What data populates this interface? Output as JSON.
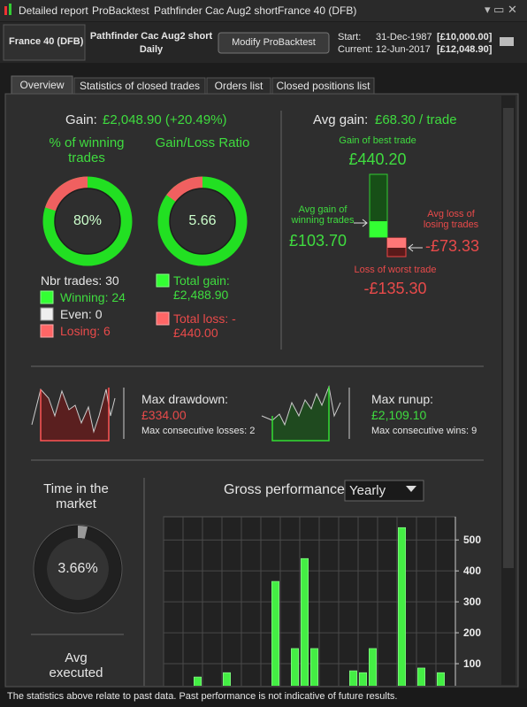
{
  "titlebar": [
    "Detailed report",
    "ProBacktest",
    "Pathfinder Cac Aug2 short",
    "France 40 (DFB)"
  ],
  "header": {
    "instrument": "France 40 (DFB)",
    "system": "Pathfinder Cac Aug2 short",
    "period": "Daily",
    "button": "Modify ProBacktest",
    "start_label": "Start:",
    "start_date": "31-Dec-1987",
    "start_capital": "[£10,000.00]",
    "current_label": "Current:",
    "current_date": "12-Jun-2017",
    "current_capital": "[£12,048.90]"
  },
  "tabs": [
    "Overview",
    "Statistics of closed trades",
    "Orders list",
    "Closed positions list"
  ],
  "summary": {
    "gain_label": "Gain:",
    "gain": "£2,048.90 (+20.49%)",
    "winning_title": "% of winning trades",
    "winning_pct": "80%",
    "ratio_title": "Gain/Loss Ratio",
    "ratio": "5.66",
    "nbr_trades": "Nbr trades: 30",
    "winning": "Winning: 24",
    "even": "Even: 0",
    "losing": "Losing: 6",
    "total_gain": "Total gain: £2,488.90",
    "total_loss": "Total loss: -£440.00"
  },
  "avg": {
    "avg_gain_label": "Avg gain:",
    "avg_gain": "£68.30 / trade",
    "best_label": "Gain of best trade",
    "best": "£440.20",
    "avg_win_label": "Avg gain of winning trades",
    "avg_win": "£103.70",
    "avg_loss_label": "Avg loss of losing trades",
    "avg_loss": "-£73.33",
    "worst_label": "Loss of worst trade",
    "worst": "-£135.30"
  },
  "drawdown": {
    "label": "Max drawdown:",
    "value": "£334.00",
    "consecutive": "Max consecutive losses: 2"
  },
  "runup": {
    "label": "Max runup:",
    "value": "£2,109.10",
    "consecutive": "Max consecutive wins: 9"
  },
  "time_in_market": {
    "label": "Time in the market",
    "value": "3.66%"
  },
  "avg_executed": {
    "label": "Avg executed"
  },
  "gross": {
    "title": "Gross performance",
    "period": "Yearly"
  },
  "chart_data": {
    "type": "bar",
    "color": "#44ee44",
    "values": [
      0,
      0,
      0,
      57,
      0,
      0,
      71,
      0,
      0,
      0,
      0,
      366,
      0,
      149,
      440,
      149,
      0,
      0,
      0,
      77,
      71,
      149,
      0,
      0,
      540,
      0,
      86,
      0,
      71,
      0
    ],
    "ylim": [
      0,
      575
    ],
    "yticks": [
      100,
      200,
      300,
      400,
      500
    ],
    "grid": true
  },
  "footer": "The statistics above relate to past data. Past performance is not indicative of future results."
}
